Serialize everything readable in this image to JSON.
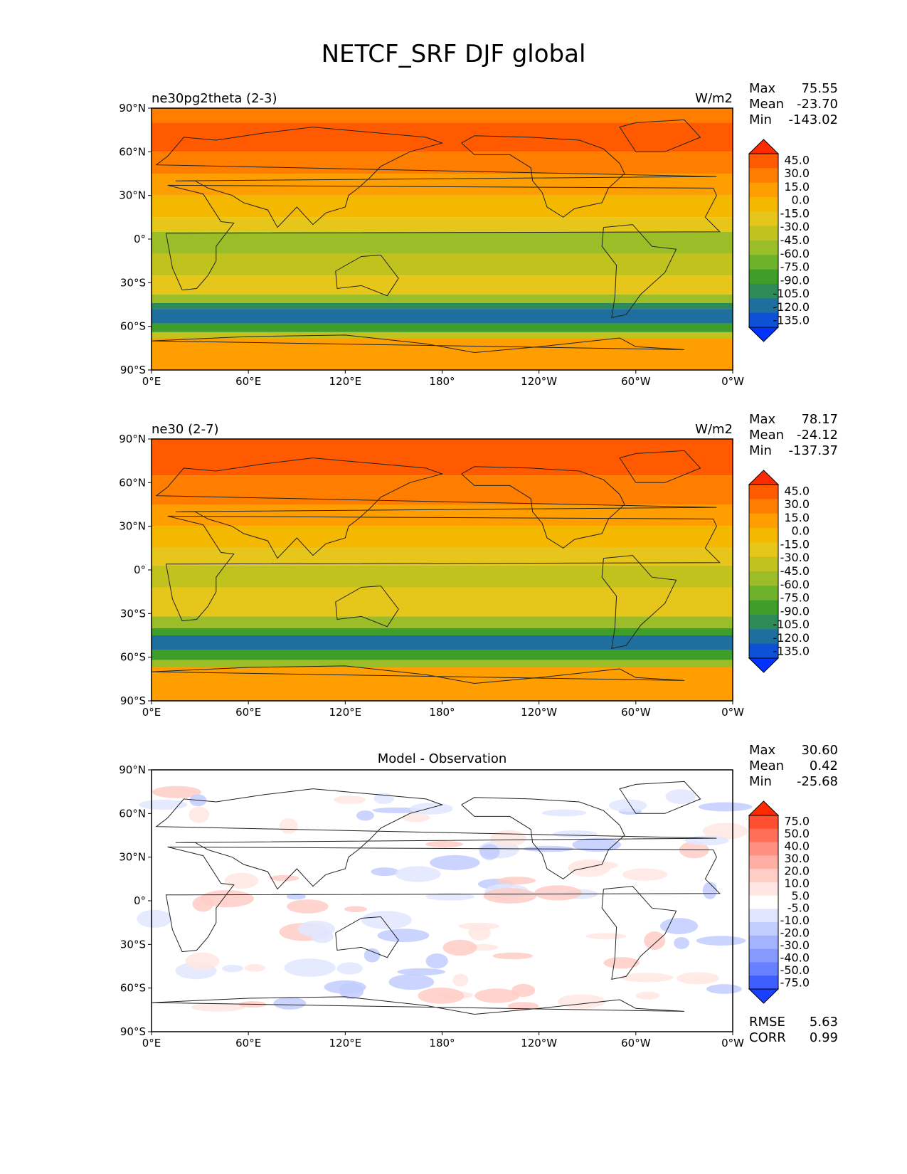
{
  "figure": {
    "title": "NETCF_SRF DJF global"
  },
  "axes": {
    "x_ticks": [
      "0°E",
      "60°E",
      "120°E",
      "180°",
      "120°W",
      "60°W",
      "0°W"
    ],
    "y_ticks": [
      "90°N",
      "60°N",
      "30°N",
      "0°",
      "30°S",
      "60°S",
      "90°S"
    ]
  },
  "panels": [
    {
      "left_label": "ne30pg2theta (2-3)",
      "center_label": "",
      "units": "W/m2",
      "stats": [
        [
          "Max",
          "75.55"
        ],
        [
          "Mean",
          "-23.70"
        ],
        [
          "Min",
          "-143.02"
        ]
      ],
      "colorbar_levels": [
        "45.0",
        "30.0",
        "15.0",
        "0.0",
        "-15.0",
        "-30.0",
        "-45.0",
        "-60.0",
        "-75.0",
        "-90.0",
        "-105.0",
        "-120.0",
        "-135.0"
      ],
      "colorbar_colors": [
        "#ff2a00",
        "#ff5a00",
        "#ff7e00",
        "#ff9e00",
        "#f5b800",
        "#e6c61a",
        "#c2c21e",
        "#9bbd27",
        "#6eb12b",
        "#3f9e2a",
        "#2f8a5a",
        "#1f6f9e",
        "#0d52d6",
        "#0033ff"
      ],
      "bands": [
        {
          "lat": 90,
          "color": "#ff7e00"
        },
        {
          "lat": 80,
          "color": "#ff5a00"
        },
        {
          "lat": 60,
          "color": "#ff7e00"
        },
        {
          "lat": 45,
          "color": "#ff9e00"
        },
        {
          "lat": 30,
          "color": "#f5b800"
        },
        {
          "lat": 15,
          "color": "#e6c61a"
        },
        {
          "lat": 5,
          "color": "#9bbd27"
        },
        {
          "lat": -10,
          "color": "#c2c21e"
        },
        {
          "lat": -25,
          "color": "#e6c61a"
        },
        {
          "lat": -38,
          "color": "#9bbd27"
        },
        {
          "lat": -44,
          "color": "#2f8a5a"
        },
        {
          "lat": -48,
          "color": "#1f6f9e"
        },
        {
          "lat": -58,
          "color": "#3f9e2a"
        },
        {
          "lat": -64,
          "color": "#c2c21e"
        },
        {
          "lat": -68,
          "color": "#ff9e00"
        }
      ]
    },
    {
      "left_label": "ne30 (2-7)",
      "center_label": "",
      "units": "W/m2",
      "stats": [
        [
          "Max",
          "78.17"
        ],
        [
          "Mean",
          "-24.12"
        ],
        [
          "Min",
          "-137.37"
        ]
      ],
      "colorbar_levels": [
        "45.0",
        "30.0",
        "15.0",
        "0.0",
        "-15.0",
        "-30.0",
        "-45.0",
        "-60.0",
        "-75.0",
        "-90.0",
        "-105.0",
        "-120.0",
        "-135.0"
      ],
      "colorbar_colors": [
        "#ff2a00",
        "#ff5a00",
        "#ff7e00",
        "#ff9e00",
        "#f5b800",
        "#e6c61a",
        "#c2c21e",
        "#9bbd27",
        "#6eb12b",
        "#3f9e2a",
        "#2f8a5a",
        "#1f6f9e",
        "#0d52d6",
        "#0033ff"
      ],
      "bands": [
        {
          "lat": 90,
          "color": "#ff5a00"
        },
        {
          "lat": 65,
          "color": "#ff7e00"
        },
        {
          "lat": 45,
          "color": "#ff9e00"
        },
        {
          "lat": 30,
          "color": "#f5b800"
        },
        {
          "lat": 15,
          "color": "#e6c61a"
        },
        {
          "lat": 3,
          "color": "#c2c21e"
        },
        {
          "lat": -12,
          "color": "#e6c61a"
        },
        {
          "lat": -32,
          "color": "#9bbd27"
        },
        {
          "lat": -40,
          "color": "#3f9e2a"
        },
        {
          "lat": -45,
          "color": "#1f6f9e"
        },
        {
          "lat": -55,
          "color": "#3f9e2a"
        },
        {
          "lat": -62,
          "color": "#9bbd27"
        },
        {
          "lat": -67,
          "color": "#ff9e00"
        }
      ]
    },
    {
      "left_label": "",
      "center_label": "Model - Observation",
      "units": "",
      "stats": [
        [
          "Max",
          "30.60"
        ],
        [
          "Mean",
          "0.42"
        ],
        [
          "Min",
          "-25.68"
        ]
      ],
      "colorbar_levels": [
        "75.0",
        "50.0",
        "40.0",
        "30.0",
        "20.0",
        "10.0",
        "5.0",
        "-5.0",
        "-10.0",
        "-20.0",
        "-30.0",
        "-40.0",
        "-50.0",
        "-75.0"
      ],
      "colorbar_colors": [
        "#ff2a00",
        "#ff4e30",
        "#ff6f5a",
        "#ff8f80",
        "#ffaea3",
        "#ffcdc6",
        "#ffe6e2",
        "#ffffff",
        "#e0e6ff",
        "#c2cdff",
        "#a3b3ff",
        "#8599ff",
        "#6680ff",
        "#3d5fff",
        "#1a40ff"
      ],
      "bands": [
        {
          "lat": 90,
          "color": "#ffffff"
        }
      ],
      "extra_stats": [
        [
          "RMSE",
          "5.63"
        ],
        [
          "CORR",
          "0.99"
        ]
      ]
    }
  ]
}
